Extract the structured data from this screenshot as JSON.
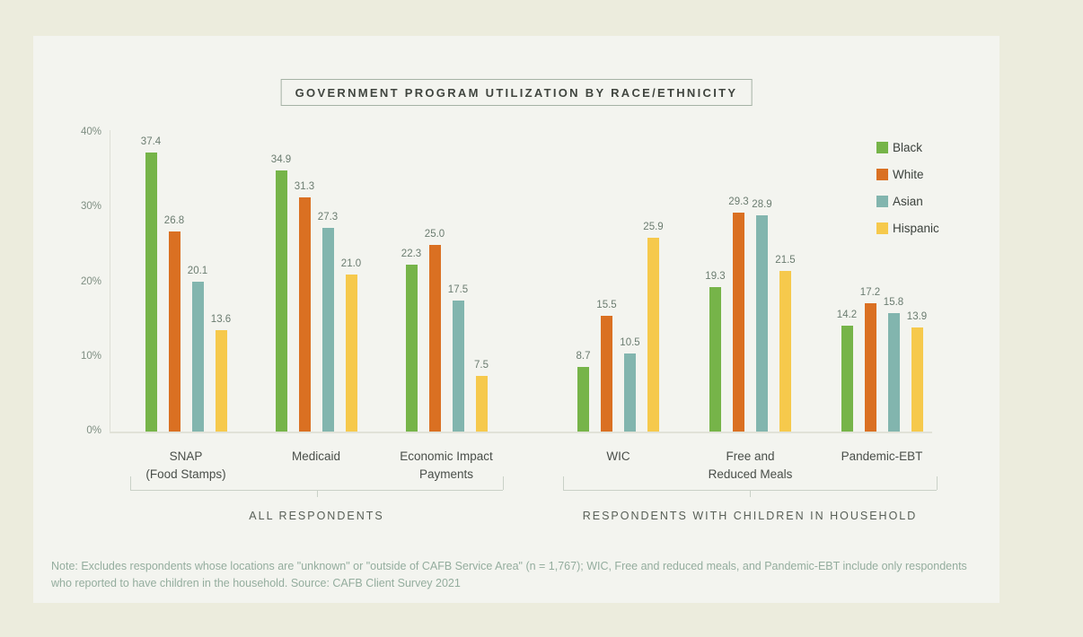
{
  "chart_data": {
    "type": "bar",
    "title": "GOVERNMENT PROGRAM UTILIZATION BY RACE/ETHNICITY",
    "categories": [
      [
        "SNAP",
        "(Food Stamps)"
      ],
      [
        "Medicaid"
      ],
      [
        "Economic Impact",
        "Payments"
      ],
      [
        "WIC"
      ],
      [
        "Free and",
        "Reduced Meals"
      ],
      [
        "Pandemic-EBT"
      ]
    ],
    "series": [
      {
        "name": "Black",
        "color": "#76B449",
        "values": [
          37.4,
          34.9,
          22.3,
          8.7,
          19.3,
          14.2
        ]
      },
      {
        "name": "White",
        "color": "#DA7022",
        "values": [
          26.8,
          31.3,
          25.0,
          15.5,
          29.3,
          17.2
        ]
      },
      {
        "name": "Asian",
        "color": "#82B5AE",
        "values": [
          20.1,
          27.3,
          17.5,
          10.5,
          28.9,
          15.8
        ]
      },
      {
        "name": "Hispanic",
        "color": "#F6C94C",
        "values": [
          13.6,
          21.0,
          7.5,
          25.9,
          21.5,
          13.9
        ]
      }
    ],
    "groups": [
      {
        "label": "ALL RESPONDENTS",
        "category_indexes": [
          0,
          1,
          2
        ]
      },
      {
        "label": "RESPONDENTS WITH CHILDREN IN HOUSEHOLD",
        "category_indexes": [
          3,
          4,
          5
        ]
      }
    ],
    "y_ticks": [
      "0%",
      "10%",
      "20%",
      "30%",
      "40%"
    ],
    "ylim": [
      0,
      40
    ],
    "ylabel": "",
    "xlabel": "",
    "grid": false,
    "value_labels": true,
    "legend_position": "top-right"
  },
  "note": "Note: Excludes respondents whose locations are \"unknown\" or \"outside of CAFB Service Area\" (n = 1,767); WIC, Free and reduced meals, and Pandemic-EBT include only respondents who reported to have children in the household. Source: CAFB Client Survey 2021"
}
